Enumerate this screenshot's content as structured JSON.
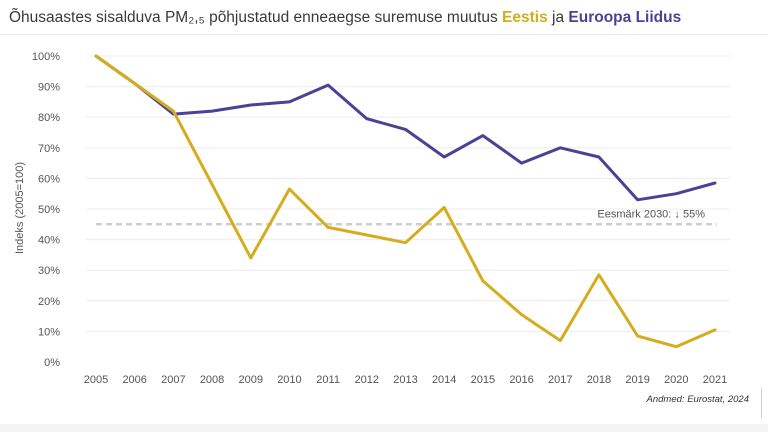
{
  "title": {
    "prefix": "Õhusaastes sisalduva PM₂,₅ põhjustatud enneaegse suremuse muutus ",
    "series1": "Eestis",
    "joiner": " ja ",
    "series2": "Euroopa Liidus"
  },
  "source": "Andmed: Eurostat, 2024",
  "colors": {
    "estonia": "#d4ac1e",
    "eu": "#4a4394",
    "target": "#cfcfcf",
    "grid": "#ececec"
  },
  "chart_data": {
    "type": "line",
    "x": [
      2005,
      2006,
      2007,
      2008,
      2009,
      2010,
      2011,
      2012,
      2013,
      2014,
      2015,
      2016,
      2017,
      2018,
      2019,
      2020,
      2021
    ],
    "ylabel": "Indeks (2005=100)",
    "ylim": [
      0,
      100
    ],
    "yticks": [
      0,
      10,
      20,
      30,
      40,
      50,
      60,
      70,
      80,
      90,
      100
    ],
    "ytick_labels": [
      "0%",
      "10%",
      "20%",
      "30%",
      "40%",
      "50%",
      "60%",
      "70%",
      "80%",
      "90%",
      "100%"
    ],
    "grid": true,
    "series": [
      {
        "name": "Euroopa Liidus",
        "color": "#4a4394",
        "values": [
          100,
          91,
          81,
          82,
          84,
          85,
          90.5,
          79.5,
          76,
          67,
          74,
          65,
          70,
          67,
          53,
          55,
          58.5
        ]
      },
      {
        "name": "Eestis",
        "color": "#d4ac1e",
        "values": [
          100,
          91,
          82,
          58,
          34,
          56.5,
          44,
          41.5,
          39,
          50.5,
          26.5,
          15.5,
          7,
          28.5,
          8.5,
          5,
          10.5
        ]
      }
    ],
    "target": {
      "label": "Eesmärk 2030:  ↓ 55%",
      "value": 45
    }
  }
}
